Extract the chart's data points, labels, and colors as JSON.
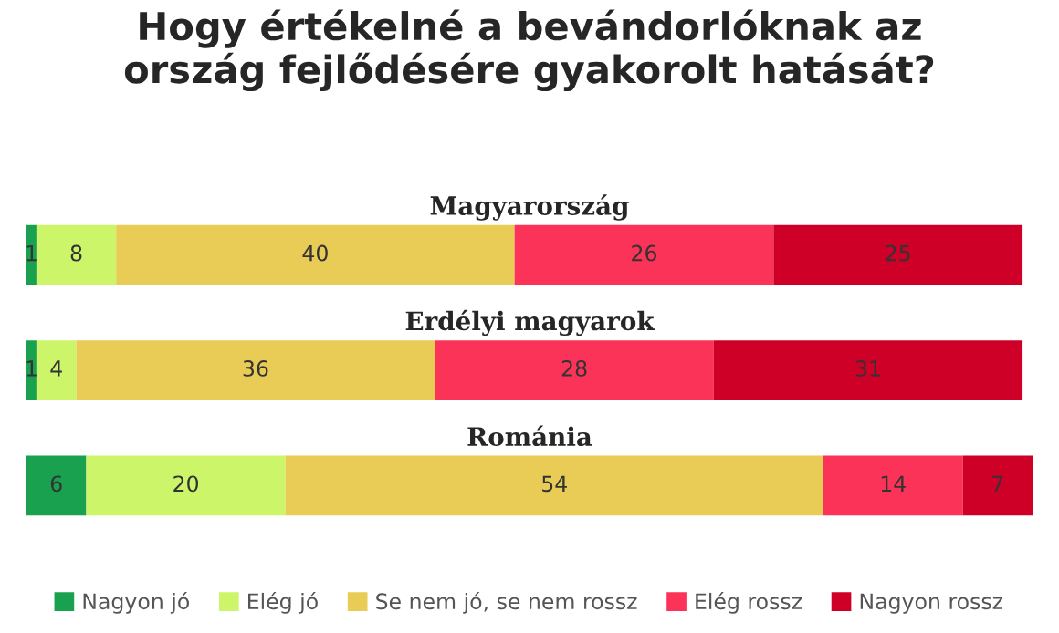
{
  "chart_data": {
    "type": "bar",
    "orientation": "horizontal",
    "stacked": true,
    "data_labels": true,
    "legend": "bottom",
    "tick_labels": false,
    "title": "Hogy értékelné a bevándorlóknak az\nország fejlődésére gyakorolt hatását?",
    "categories": [
      "Magyarország",
      "Erdélyi magyarok",
      "Románia"
    ],
    "series": [
      {
        "name": "Nagyon jó",
        "color": "#1aa150",
        "values": [
          1,
          1,
          6
        ]
      },
      {
        "name": "Elég jó",
        "color": "#ccf56a",
        "values": [
          8,
          4,
          20
        ]
      },
      {
        "name": "Se nem jó, se nem rossz",
        "color": "#e8cc55",
        "values": [
          40,
          36,
          54
        ]
      },
      {
        "name": "Elég rossz",
        "color": "#fb3358",
        "values": [
          26,
          28,
          14
        ]
      },
      {
        "name": "Nagyon rossz",
        "color": "#cf0028",
        "values": [
          25,
          31,
          7
        ]
      }
    ]
  }
}
